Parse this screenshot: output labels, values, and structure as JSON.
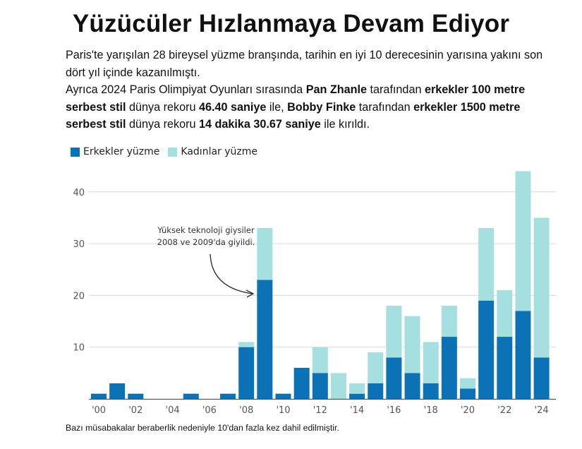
{
  "title": "Yüzücüler Hızlanmaya Devam Ediyor",
  "intro": {
    "line1": "Paris'te yarışılan 28 bireysel yüzme branşında, tarihin en iyi 10 derecesinin yarısına yakını son dört yıl içinde kazanılmıştı.",
    "p2_a": "Ayrıca 2024 Paris Olimpiyat Oyunları sırasında ",
    "p2_b": "Pan Zhanle",
    "p2_c": " tarafından ",
    "p2_d": "erkekler 100 metre serbest stil",
    "p2_e": " dünya rekoru ",
    "p2_f": "46.40 saniye",
    "p2_g": " ile, ",
    "p2_h": "Bobby Finke",
    "p2_i": " tarafından ",
    "p2_j": "erkekler 1500 metre serbest stil",
    "p2_k": " dünya rekoru ",
    "p2_l": "14 dakika 30.67 saniye",
    "p2_m": " ile kırıldı."
  },
  "legend": {
    "men": "Erkekler yüzme",
    "women": "Kadınlar yüzme"
  },
  "annotation": {
    "line1": "Yüksek teknoloji giysiler",
    "line2": "2008 ve 2009'da giyildi."
  },
  "footnote": "Bazı müsabakalar beraberlik nedeniyle 10'dan fazla kez dahil edilmiştir.",
  "colors": {
    "men": "#0a72b5",
    "women": "#a6dfe0",
    "grid": "#d9d9d9",
    "axis": "#555555"
  },
  "chart_data": {
    "type": "bar",
    "stacked": true,
    "x": [
      2000,
      2001,
      2002,
      2003,
      2004,
      2005,
      2006,
      2007,
      2008,
      2009,
      2010,
      2011,
      2012,
      2013,
      2014,
      2015,
      2016,
      2017,
      2018,
      2019,
      2020,
      2021,
      2022,
      2023,
      2024
    ],
    "x_tick_labels": [
      "'00",
      "'02",
      "'04",
      "'06",
      "'08",
      "'10",
      "'12",
      "'14",
      "'16",
      "'18",
      "'20",
      "'22",
      "'24"
    ],
    "x_tick_years": [
      2000,
      2002,
      2004,
      2006,
      2008,
      2010,
      2012,
      2014,
      2016,
      2018,
      2020,
      2022,
      2024
    ],
    "series": [
      {
        "name": "Erkekler yüzme",
        "values": [
          1,
          3,
          1,
          0,
          0,
          1,
          0,
          1,
          10,
          23,
          1,
          6,
          5,
          0,
          1,
          3,
          8,
          5,
          3,
          12,
          2,
          19,
          12,
          17,
          8
        ]
      },
      {
        "name": "Kadınlar yüzme",
        "values": [
          0,
          0,
          0,
          0,
          0,
          0,
          0,
          0,
          1,
          10,
          0,
          0,
          5,
          5,
          2,
          6,
          10,
          11,
          8,
          6,
          2,
          14,
          9,
          27,
          27
        ]
      }
    ],
    "yticks": [
      10,
      20,
      30,
      40
    ],
    "ylim": [
      0,
      44
    ],
    "grid": true,
    "legend_position": "top-left"
  }
}
